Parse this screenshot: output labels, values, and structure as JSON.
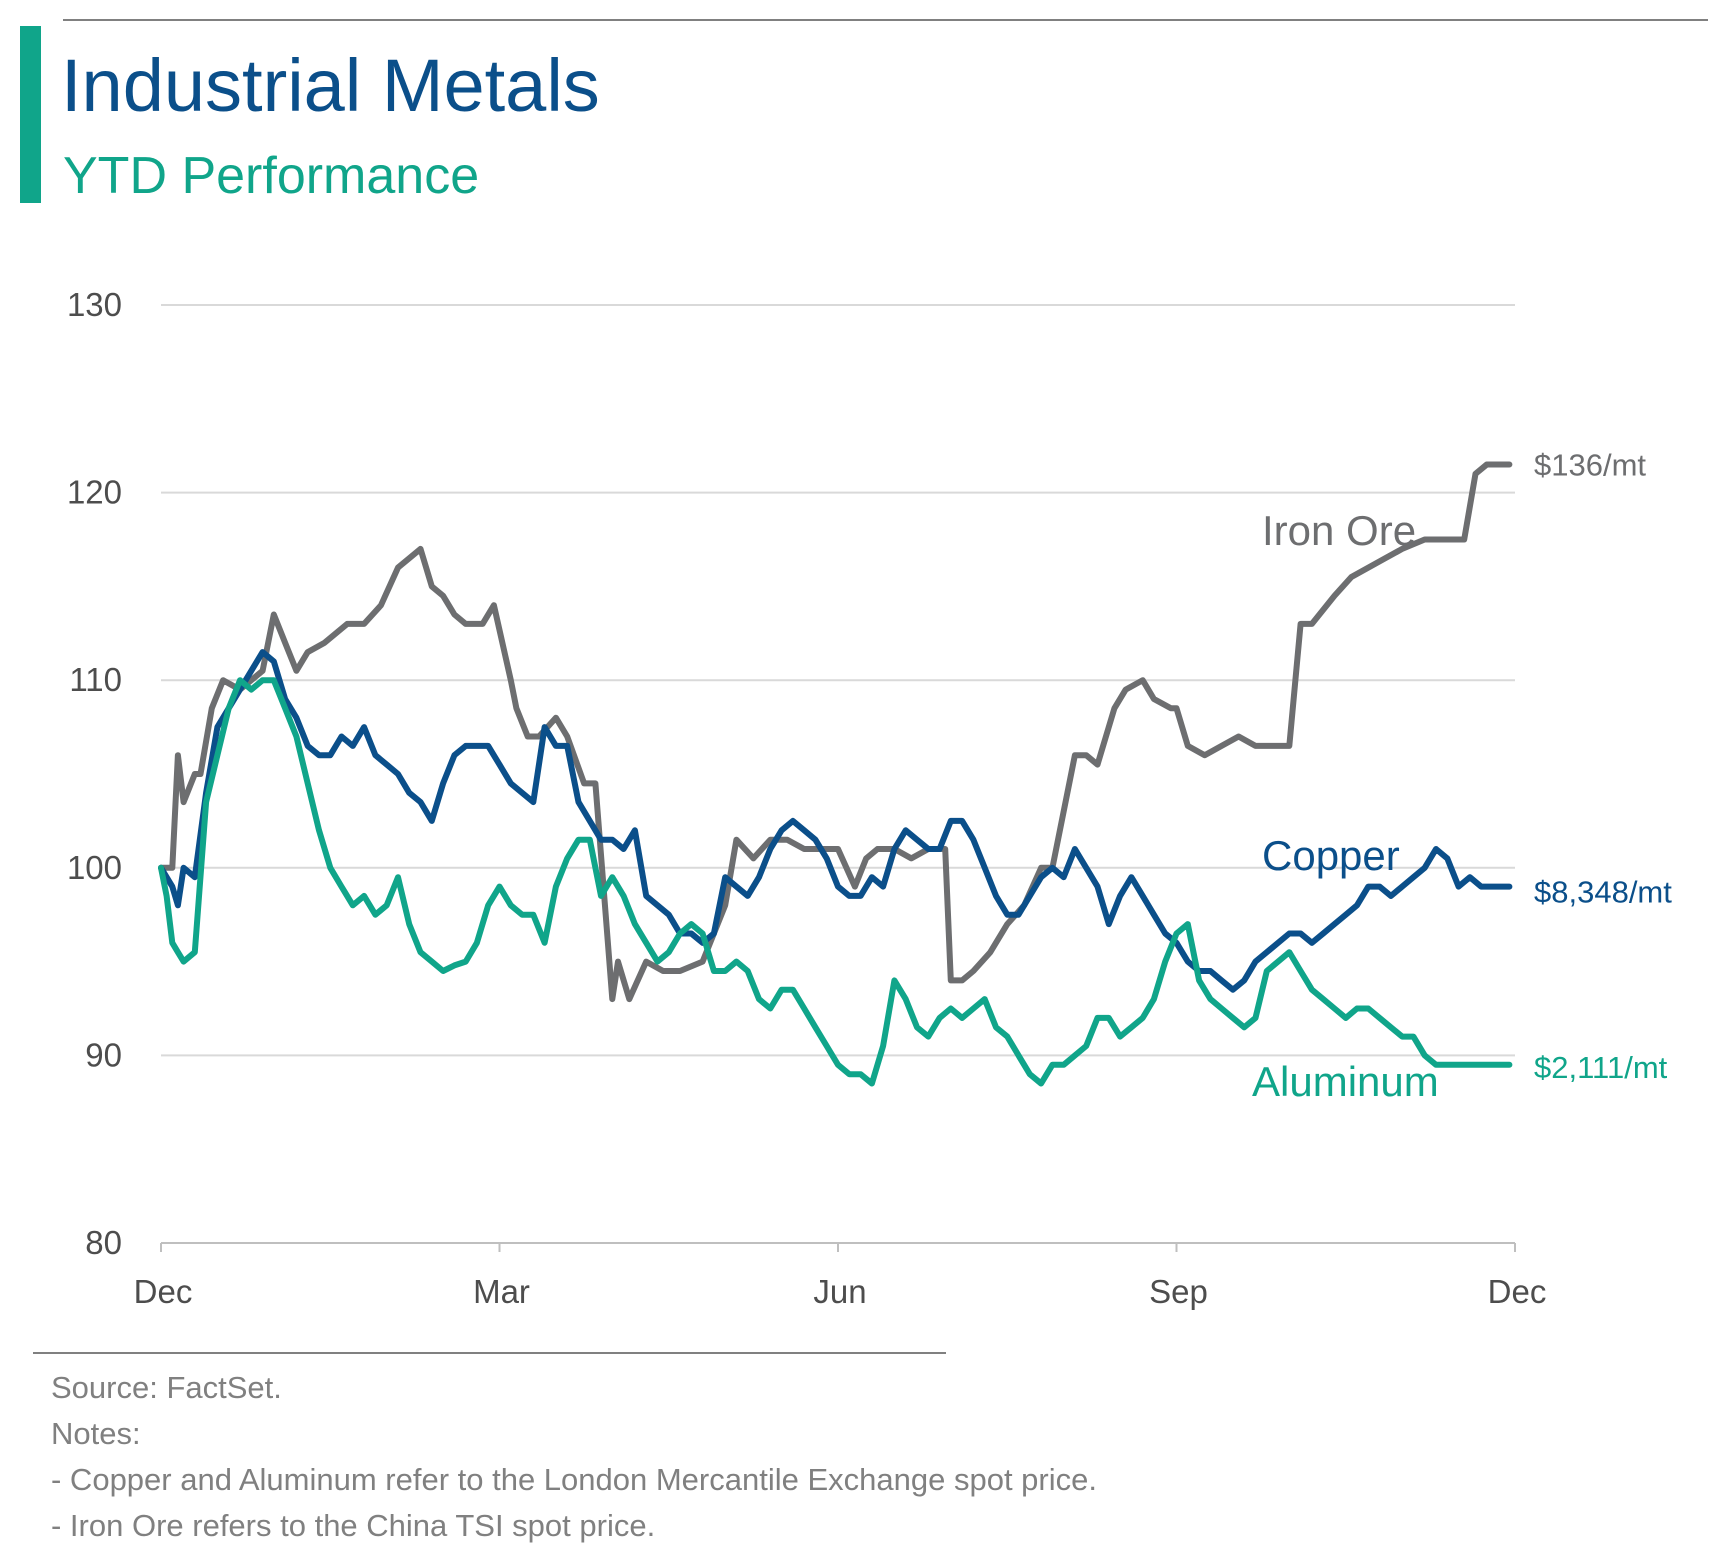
{
  "header": {
    "title": "Industrial Metals",
    "subtitle": "YTD Performance"
  },
  "colors": {
    "title": "#0b4f8a",
    "accent_bar": "#10a58a",
    "grid": "#d9d9d9",
    "axis": "#bfbfbf",
    "tick_text": "#4d4d4d",
    "note_text": "#808080"
  },
  "chart_data": {
    "type": "line",
    "title": "Industrial Metals",
    "subtitle": "YTD Performance",
    "xlabel": "",
    "ylabel": "",
    "ylim": [
      80,
      130
    ],
    "yticks": [
      80,
      90,
      100,
      110,
      120,
      130
    ],
    "xlim": [
      0,
      12
    ],
    "xticks": [
      {
        "value": 0,
        "label": "Dec"
      },
      {
        "value": 3,
        "label": "Mar"
      },
      {
        "value": 6,
        "label": "Jun"
      },
      {
        "value": 9,
        "label": "Sep"
      },
      {
        "value": 12,
        "label": "Dec"
      }
    ],
    "grid": true,
    "series": [
      {
        "name": "Iron Ore",
        "color": "#6d6e70",
        "label": "Iron Ore",
        "end_label": "$136/mt",
        "x": [
          0,
          0.1,
          0.15,
          0.2,
          0.3,
          0.35,
          0.45,
          0.55,
          0.7,
          0.8,
          0.9,
          1.0,
          1.1,
          1.2,
          1.3,
          1.45,
          1.55,
          1.65,
          1.8,
          1.95,
          2.1,
          2.2,
          2.3,
          2.4,
          2.5,
          2.6,
          2.7,
          2.85,
          2.95,
          3.1,
          3.15,
          3.25,
          3.35,
          3.5,
          3.6,
          3.75,
          3.85,
          4.0,
          4.05,
          4.15,
          4.3,
          4.45,
          4.6,
          4.8,
          5.0,
          5.1,
          5.25,
          5.4,
          5.55,
          5.7,
          5.85,
          6.0,
          6.15,
          6.25,
          6.35,
          6.5,
          6.65,
          6.8,
          6.95,
          7.0,
          7.1,
          7.2,
          7.35,
          7.5,
          7.65,
          7.8,
          7.9,
          8.1,
          8.2,
          8.3,
          8.45,
          8.55,
          8.7,
          8.8,
          8.95,
          9.0,
          9.1,
          9.25,
          9.4,
          9.55,
          9.7,
          9.85,
          10.0,
          10.1,
          10.2,
          10.4,
          10.55,
          10.7,
          10.85,
          11.0,
          11.2,
          11.4,
          11.55,
          11.65,
          11.75,
          11.85,
          11.95
        ],
        "values": [
          100,
          100,
          106,
          103.5,
          105,
          105,
          108.5,
          110,
          109.5,
          110,
          110.5,
          113.5,
          112,
          110.5,
          111.5,
          112,
          112.5,
          113,
          113,
          114,
          116,
          116.5,
          117,
          115,
          114.5,
          113.5,
          113,
          113,
          114,
          110,
          108.5,
          107,
          107,
          108,
          107,
          104.5,
          104.5,
          93,
          95,
          93,
          95,
          94.5,
          94.5,
          95,
          98,
          101.5,
          100.5,
          101.5,
          101.5,
          101,
          101,
          101,
          99,
          100.5,
          101,
          101,
          100.5,
          101,
          101,
          94,
          94,
          94.5,
          95.5,
          97,
          98,
          100,
          100,
          106,
          106,
          105.5,
          108.5,
          109.5,
          110,
          109,
          108.5,
          108.5,
          106.5,
          106,
          106.5,
          107,
          106.5,
          106.5,
          106.5,
          113,
          113,
          114.5,
          115.5,
          116,
          116.5,
          117,
          117.5,
          117.5,
          117.5,
          121,
          121.5,
          121.5,
          121.5
        ]
      },
      {
        "name": "Copper",
        "color": "#0b4f8a",
        "label": "Copper",
        "end_label": "$8,348/mt",
        "x": [
          0,
          0.1,
          0.15,
          0.2,
          0.3,
          0.4,
          0.5,
          0.6,
          0.7,
          0.8,
          0.9,
          1.0,
          1.1,
          1.2,
          1.3,
          1.4,
          1.5,
          1.6,
          1.7,
          1.8,
          1.9,
          2.0,
          2.1,
          2.2,
          2.3,
          2.4,
          2.5,
          2.6,
          2.7,
          2.8,
          2.9,
          3.0,
          3.1,
          3.2,
          3.3,
          3.4,
          3.5,
          3.6,
          3.7,
          3.8,
          3.9,
          4.0,
          4.1,
          4.2,
          4.3,
          4.4,
          4.5,
          4.6,
          4.7,
          4.8,
          4.9,
          5.0,
          5.1,
          5.2,
          5.3,
          5.4,
          5.5,
          5.6,
          5.7,
          5.8,
          5.9,
          6.0,
          6.1,
          6.2,
          6.3,
          6.4,
          6.5,
          6.6,
          6.7,
          6.8,
          6.9,
          7.0,
          7.1,
          7.2,
          7.3,
          7.4,
          7.5,
          7.6,
          7.7,
          7.8,
          7.9,
          8.0,
          8.1,
          8.2,
          8.3,
          8.4,
          8.5,
          8.6,
          8.7,
          8.8,
          8.9,
          9.0,
          9.1,
          9.2,
          9.3,
          9.4,
          9.5,
          9.6,
          9.7,
          9.8,
          9.9,
          10.0,
          10.1,
          10.2,
          10.3,
          10.4,
          10.5,
          10.6,
          10.7,
          10.8,
          10.9,
          11.0,
          11.1,
          11.2,
          11.3,
          11.4,
          11.5,
          11.6,
          11.7,
          11.8,
          11.9,
          11.95
        ],
        "values": [
          100,
          99,
          98,
          100,
          99.5,
          104,
          107.5,
          108.5,
          109.5,
          110.5,
          111.5,
          111,
          109,
          108,
          106.5,
          106,
          106,
          107,
          106.5,
          107.5,
          106,
          105.5,
          105,
          104,
          103.5,
          102.5,
          104.5,
          106,
          106.5,
          106.5,
          106.5,
          105.5,
          104.5,
          104,
          103.5,
          107.5,
          106.5,
          106.5,
          103.5,
          102.5,
          101.5,
          101.5,
          101,
          102,
          98.5,
          98,
          97.5,
          96.5,
          96.5,
          96,
          96.5,
          99.5,
          99,
          98.5,
          99.5,
          101,
          102,
          102.5,
          102,
          101.5,
          100.5,
          99,
          98.5,
          98.5,
          99.5,
          99,
          101,
          102,
          101.5,
          101,
          101,
          102.5,
          102.5,
          101.5,
          100,
          98.5,
          97.5,
          97.5,
          98.5,
          99.5,
          100,
          99.5,
          101,
          100,
          99,
          97,
          98.5,
          99.5,
          98.5,
          97.5,
          96.5,
          96,
          95,
          94.5,
          94.5,
          94,
          93.5,
          94,
          95,
          95.5,
          96,
          96.5,
          96.5,
          96,
          96.5,
          97,
          97.5,
          98,
          99,
          99,
          98.5,
          99,
          99.5,
          100,
          101,
          100.5,
          99,
          99.5,
          99,
          99,
          99,
          99
        ]
      },
      {
        "name": "Aluminum",
        "color": "#10a58a",
        "label": "Aluminum",
        "end_label": "$2,111/mt",
        "x": [
          0,
          0.05,
          0.1,
          0.15,
          0.2,
          0.3,
          0.4,
          0.5,
          0.6,
          0.7,
          0.8,
          0.9,
          1.0,
          1.1,
          1.2,
          1.3,
          1.4,
          1.5,
          1.6,
          1.7,
          1.8,
          1.9,
          2.0,
          2.1,
          2.2,
          2.3,
          2.4,
          2.5,
          2.6,
          2.7,
          2.8,
          2.9,
          3.0,
          3.1,
          3.2,
          3.3,
          3.4,
          3.5,
          3.6,
          3.7,
          3.8,
          3.9,
          4.0,
          4.1,
          4.2,
          4.3,
          4.4,
          4.5,
          4.6,
          4.7,
          4.8,
          4.9,
          5.0,
          5.1,
          5.2,
          5.3,
          5.4,
          5.5,
          5.6,
          5.7,
          5.8,
          5.9,
          6.0,
          6.1,
          6.2,
          6.3,
          6.4,
          6.5,
          6.6,
          6.7,
          6.8,
          6.9,
          7.0,
          7.1,
          7.2,
          7.3,
          7.4,
          7.5,
          7.6,
          7.7,
          7.8,
          7.9,
          8.0,
          8.1,
          8.2,
          8.3,
          8.4,
          8.5,
          8.6,
          8.7,
          8.8,
          8.9,
          9.0,
          9.1,
          9.2,
          9.3,
          9.4,
          9.5,
          9.6,
          9.7,
          9.8,
          9.9,
          10.0,
          10.1,
          10.2,
          10.3,
          10.4,
          10.5,
          10.6,
          10.7,
          10.8,
          10.9,
          11.0,
          11.1,
          11.2,
          11.3,
          11.4,
          11.5,
          11.6,
          11.7,
          11.8,
          11.9,
          11.95
        ],
        "values": [
          100,
          98.5,
          96,
          95.5,
          95,
          95.5,
          103.5,
          106,
          108.5,
          110,
          109.5,
          110,
          110,
          108.5,
          107,
          104.5,
          102,
          100,
          99,
          98,
          98.5,
          97.5,
          98,
          99.5,
          97,
          95.5,
          95,
          94.5,
          94.8,
          95,
          96,
          98,
          99,
          98,
          97.5,
          97.5,
          96,
          99,
          100.5,
          101.5,
          101.5,
          98.5,
          99.5,
          98.5,
          97,
          96,
          95,
          95.5,
          96.5,
          97,
          96.5,
          94.5,
          94.5,
          95,
          94.5,
          93,
          92.5,
          93.5,
          93.5,
          92.5,
          91.5,
          90.5,
          89.5,
          89,
          89,
          88.5,
          90.5,
          94,
          93,
          91.5,
          91,
          92,
          92.5,
          92,
          92.5,
          93,
          91.5,
          91,
          90,
          89,
          88.5,
          89.5,
          89.5,
          90,
          90.5,
          92,
          92,
          91,
          91.5,
          92,
          93,
          95,
          96.5,
          97,
          94,
          93,
          92.5,
          92,
          91.5,
          92,
          94.5,
          95,
          95.5,
          94.5,
          93.5,
          93,
          92.5,
          92,
          92.5,
          92.5,
          92,
          91.5,
          91,
          91,
          90,
          89.5,
          89.5,
          89.5,
          89.5,
          89.5,
          89.5,
          89.5,
          89.5
        ]
      }
    ]
  },
  "footer": {
    "source": "Source: FactSet.",
    "notes_heading": "Notes:",
    "note_1": "- Copper and Aluminum refer to the London Mercantile Exchange spot price.",
    "note_2": "- Iron Ore refers to the China TSI spot price."
  }
}
